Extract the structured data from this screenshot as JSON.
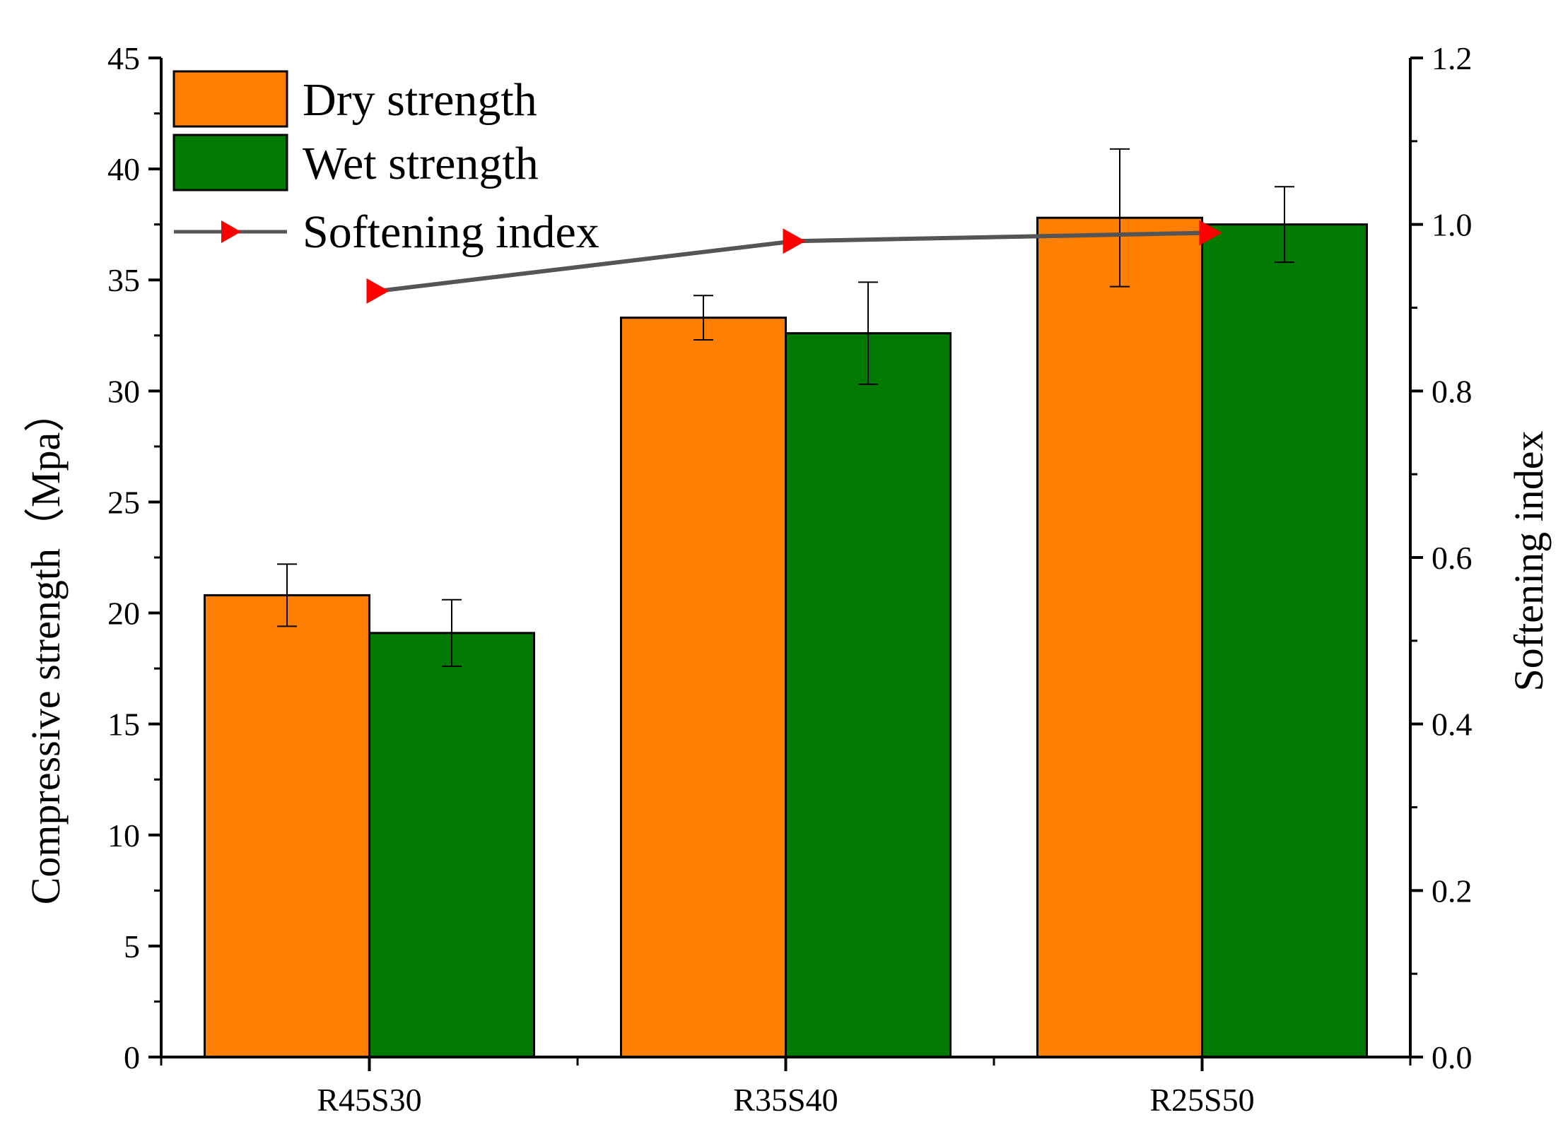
{
  "chart_data": {
    "type": "bar",
    "categories": [
      "R45S30",
      "R35S40",
      "R25S50"
    ],
    "series": [
      {
        "name": "Dry strength",
        "color": "#ff7f00",
        "values": [
          20.8,
          33.3,
          37.8
        ],
        "errors": [
          1.4,
          1.0,
          3.1
        ]
      },
      {
        "name": "Wet strength",
        "color": "#007a00",
        "values": [
          19.1,
          32.6,
          37.5
        ],
        "errors": [
          1.5,
          2.3,
          1.7
        ]
      }
    ],
    "line_series": {
      "name": "Softening index",
      "axis": "right",
      "line_color": "#555555",
      "marker_color": "#ff0000",
      "marker": "right-triangle",
      "values": [
        0.92,
        0.98,
        0.99
      ]
    },
    "ylabel": "Compressive strength（Mpa）",
    "y2label": "Softening index",
    "ylim": [
      0,
      45
    ],
    "y_ticks": [
      0,
      5,
      10,
      15,
      20,
      25,
      30,
      35,
      40,
      45
    ],
    "y2lim": [
      0,
      1.2
    ],
    "y2_ticks": [
      "0.0",
      "0.2",
      "0.4",
      "0.6",
      "0.8",
      "1.0",
      "1.2"
    ],
    "legend": {
      "position": "top-left",
      "entries": [
        "Dry strength",
        "Wet strength",
        "Softening index"
      ]
    },
    "grid": false
  }
}
